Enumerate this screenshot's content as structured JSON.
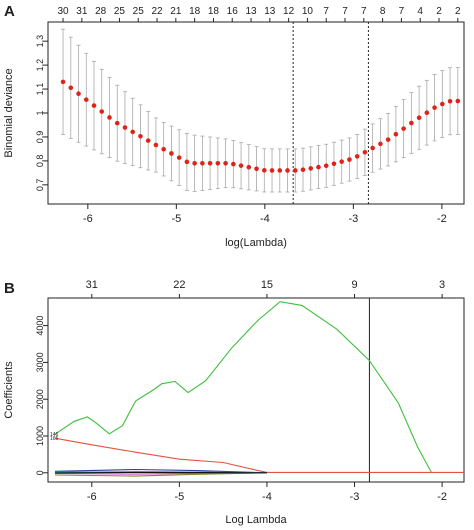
{
  "figure": {
    "panel_a_label": "A",
    "panel_b_label": "B"
  },
  "chart_data": [
    {
      "type": "scatter",
      "panel": "A",
      "xlabel": "log(Lambda)",
      "ylabel": "Binomial deviance",
      "xlim": [
        -6.45,
        -1.75
      ],
      "ylim": [
        0.62,
        1.38
      ],
      "xticks": [
        -6,
        -5,
        -4,
        -3,
        -2
      ],
      "yticks": [
        0.7,
        0.8,
        0.9,
        1.0,
        1.1,
        1.2,
        1.3
      ],
      "top_axis_labels": [
        "30",
        "31",
        "28",
        "25",
        "25",
        "22",
        "21",
        "18",
        "18",
        "16",
        "13",
        "13",
        "12",
        "10",
        "7",
        "7",
        "7",
        "8",
        "7",
        "4",
        "2",
        "2"
      ],
      "vlines": [
        -3.68,
        -2.83
      ],
      "point_color": "#e0231a",
      "errorbar_color": "#a8a8a8",
      "points": {
        "x": [
          -6.28,
          -5.68,
          -5.2,
          -4.85,
          -4.4,
          -4.0,
          -3.62,
          -3.3,
          -3.0,
          -2.6,
          -2.3,
          -2.05,
          -1.9,
          -1.82
        ],
        "y": [
          1.13,
          0.96,
          0.86,
          0.79,
          0.79,
          0.76,
          0.76,
          0.78,
          0.81,
          0.89,
          0.97,
          1.03,
          1.05,
          1.05
        ]
      },
      "errorbar_halfwidth": {
        "x": [
          -6.28,
          -5.68,
          -5.2,
          -4.85,
          -4.4,
          -4.0,
          -3.62,
          -3.3,
          -3.0,
          -2.6,
          -2.3,
          -2.05,
          -1.82
        ],
        "y": [
          0.22,
          0.16,
          0.11,
          0.12,
          0.1,
          0.09,
          0.09,
          0.09,
          0.09,
          0.11,
          0.13,
          0.14,
          0.14
        ]
      }
    },
    {
      "type": "line",
      "panel": "B",
      "xlabel": "Log Lambda",
      "ylabel": "Coefficients",
      "xlim": [
        -6.5,
        -1.75
      ],
      "ylim": [
        -250,
        4750
      ],
      "xticks": [
        -6,
        -5,
        -4,
        -3,
        -2
      ],
      "yticks": [
        0,
        1000,
        2000,
        3000,
        4000
      ],
      "top_axis_ticks": [
        -6.0,
        -5.0,
        -4.0,
        -3.0,
        -2.0
      ],
      "top_axis_labels": [
        "31",
        "22",
        "15",
        "9",
        "3"
      ],
      "vline": -2.83,
      "left_labels": [
        "146",
        "165"
      ],
      "series": [
        {
          "color": "#3fbf3f",
          "x": [
            -6.42,
            -6.2,
            -6.05,
            -5.95,
            -5.8,
            -5.65,
            -5.5,
            -5.3,
            -5.2,
            -5.05,
            -4.9,
            -4.7,
            -4.4,
            -4.1,
            -3.85,
            -3.6,
            -3.2,
            -2.83,
            -2.5,
            -2.28,
            -2.12
          ],
          "y": [
            1050,
            1400,
            1520,
            1350,
            1060,
            1280,
            1950,
            2250,
            2420,
            2480,
            2180,
            2500,
            3400,
            4150,
            4650,
            4550,
            3900,
            3050,
            1900,
            700,
            0
          ]
        },
        {
          "color": "#e8513f",
          "x": [
            -6.42,
            -6.0,
            -5.5,
            -5.0,
            -4.5,
            -4.1,
            -4.0,
            -1.75
          ],
          "y": [
            940,
            760,
            560,
            370,
            280,
            60,
            10,
            10
          ]
        },
        {
          "color": "#2f3fa0",
          "x": [
            -6.42,
            -5.5,
            -4.8,
            -4.0
          ],
          "y": [
            40,
            90,
            60,
            0
          ]
        },
        {
          "color": "#8a8a1f",
          "x": [
            -6.42,
            -5.5,
            -4.8,
            -4.0
          ],
          "y": [
            -60,
            -90,
            -40,
            0
          ]
        },
        {
          "color": "#20a8a8",
          "x": [
            -6.42,
            -5.5,
            -4.8,
            -4.0
          ],
          "y": [
            15,
            30,
            20,
            0
          ]
        },
        {
          "color": "#d040d0",
          "x": [
            -6.42,
            -5.5,
            -4.8,
            -4.0
          ],
          "y": [
            -20,
            -35,
            -15,
            0
          ]
        },
        {
          "color": "#111111",
          "x": [
            -6.42,
            -5.5,
            -4.8,
            -4.0
          ],
          "y": [
            -5,
            10,
            5,
            0
          ]
        }
      ]
    }
  ]
}
